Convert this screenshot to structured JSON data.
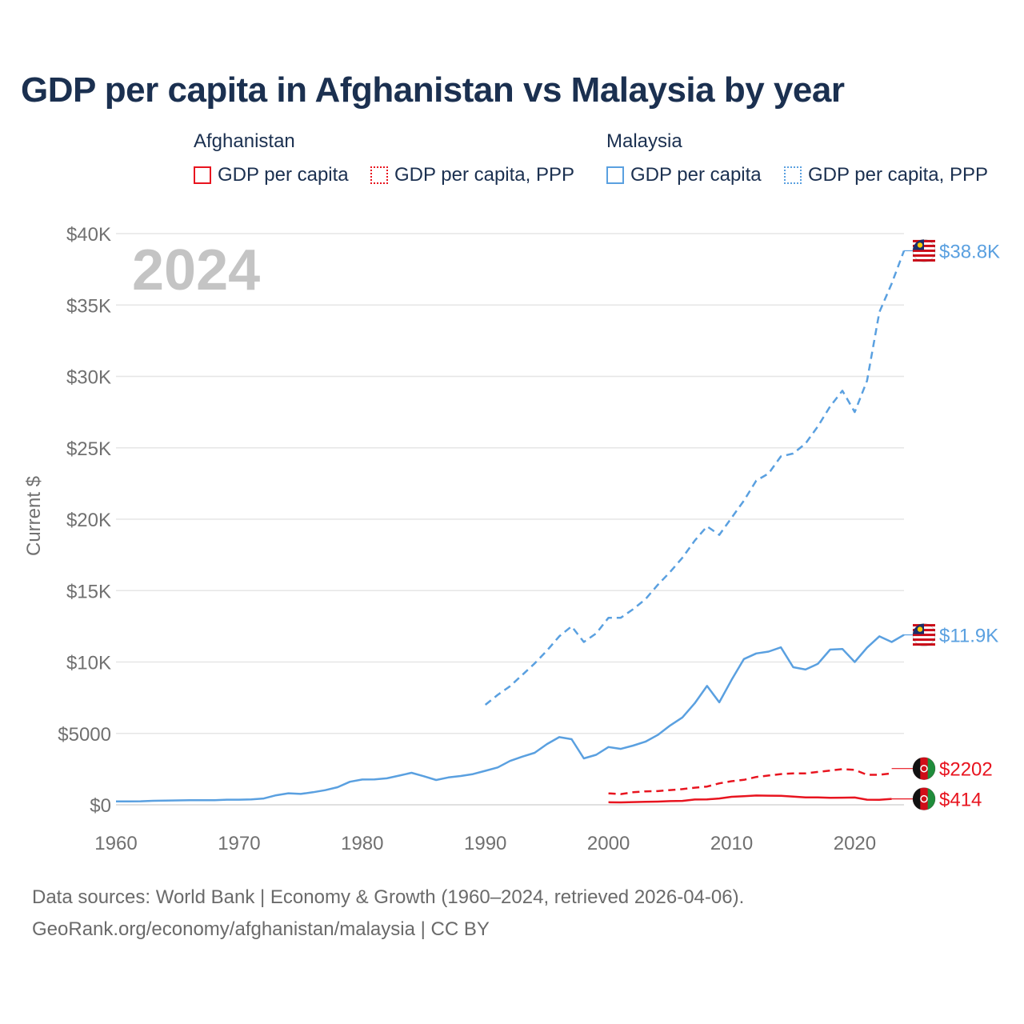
{
  "title": "GDP per capita in Afghanistan vs Malaysia by year",
  "legend": {
    "groups": [
      {
        "country": "Afghanistan",
        "color": "#e8141f",
        "items": [
          "GDP per capita",
          "GDP per capita, PPP"
        ]
      },
      {
        "country": "Malaysia",
        "color": "#5aa0e0",
        "items": [
          "GDP per capita",
          "GDP per capita, PPP"
        ]
      }
    ]
  },
  "chart_data": {
    "type": "line",
    "title": "GDP per capita in Afghanistan vs Malaysia by year",
    "ylabel": "Current $",
    "year_label": "2024",
    "xlim": [
      1960,
      2024
    ],
    "ylim": [
      0,
      40000
    ],
    "x_ticks": [
      "1960",
      "1970",
      "1980",
      "1990",
      "2000",
      "2010",
      "2020"
    ],
    "x_tick_values": [
      1960,
      1970,
      1980,
      1990,
      2000,
      2010,
      2020
    ],
    "y_ticks": [
      "$0",
      "$5000",
      "$10K",
      "$15K",
      "$20K",
      "$25K",
      "$30K",
      "$35K",
      "$40K"
    ],
    "y_tick_values": [
      0,
      5000,
      10000,
      15000,
      20000,
      25000,
      30000,
      35000,
      40000
    ],
    "series": [
      {
        "name": "Malaysia GDP per capita, PPP",
        "country": "Malaysia",
        "style": "dashed",
        "color": "#5aa0e0",
        "end_label": "$38.8K",
        "end_value": 38800,
        "x": [
          1990,
          1991,
          1992,
          1993,
          1994,
          1995,
          1996,
          1997,
          1998,
          1999,
          2000,
          2001,
          2002,
          2003,
          2004,
          2005,
          2006,
          2007,
          2008,
          2009,
          2010,
          2011,
          2012,
          2013,
          2014,
          2015,
          2016,
          2017,
          2018,
          2019,
          2020,
          2021,
          2022,
          2023,
          2024
        ],
        "values": [
          7000,
          7700,
          8300,
          9100,
          9900,
          10800,
          11800,
          12500,
          11400,
          12000,
          13100,
          13100,
          13700,
          14400,
          15400,
          16300,
          17300,
          18500,
          19500,
          18900,
          20100,
          21300,
          22700,
          23200,
          24400,
          24600,
          25300,
          26500,
          27900,
          29000,
          27500,
          29700,
          34500,
          36500,
          38800
        ]
      },
      {
        "name": "Malaysia GDP per capita",
        "country": "Malaysia",
        "style": "solid",
        "color": "#5aa0e0",
        "end_label": "$11.9K",
        "end_value": 11900,
        "x": [
          1960,
          1961,
          1962,
          1963,
          1964,
          1965,
          1966,
          1967,
          1968,
          1969,
          1970,
          1971,
          1972,
          1973,
          1974,
          1975,
          1976,
          1977,
          1978,
          1979,
          1980,
          1981,
          1982,
          1983,
          1984,
          1985,
          1986,
          1987,
          1988,
          1989,
          1990,
          1991,
          1992,
          1993,
          1994,
          1995,
          1996,
          1997,
          1998,
          1999,
          2000,
          2001,
          2002,
          2003,
          2004,
          2005,
          2006,
          2007,
          2008,
          2009,
          2010,
          2011,
          2012,
          2013,
          2014,
          2015,
          2016,
          2017,
          2018,
          2019,
          2020,
          2021,
          2022,
          2023,
          2024
        ],
        "values": [
          235,
          233,
          244,
          281,
          296,
          310,
          323,
          321,
          325,
          358,
          357,
          382,
          444,
          667,
          806,
          764,
          882,
          1025,
          1233,
          1614,
          1769,
          1780,
          1856,
          2047,
          2241,
          2000,
          1736,
          1918,
          2019,
          2154,
          2380,
          2617,
          3072,
          3372,
          3640,
          4250,
          4740,
          4594,
          3250,
          3500,
          4044,
          3914,
          4145,
          4420,
          4891,
          5553,
          6118,
          7110,
          8325,
          7175,
          8752,
          10209,
          10601,
          10728,
          11024,
          9634,
          9476,
          9869,
          10870,
          10914,
          10000,
          11000,
          11800,
          11400,
          11900
        ]
      },
      {
        "name": "Afghanistan GDP per capita, PPP",
        "country": "Afghanistan",
        "style": "dashed",
        "color": "#e8141f",
        "end_label": "$2202",
        "end_value": 2202,
        "x": [
          2000,
          2001,
          2002,
          2003,
          2004,
          2005,
          2006,
          2007,
          2008,
          2009,
          2010,
          2011,
          2012,
          2013,
          2014,
          2015,
          2016,
          2017,
          2018,
          2019,
          2020,
          2021,
          2022,
          2023
        ],
        "values": [
          800,
          750,
          880,
          940,
          960,
          1030,
          1100,
          1200,
          1280,
          1500,
          1650,
          1750,
          1950,
          2050,
          2150,
          2200,
          2200,
          2300,
          2400,
          2500,
          2450,
          2100,
          2100,
          2202
        ]
      },
      {
        "name": "Afghanistan GDP per capita",
        "country": "Afghanistan",
        "style": "solid",
        "color": "#e8141f",
        "end_label": "$414",
        "end_value": 414,
        "x": [
          2000,
          2001,
          2002,
          2003,
          2004,
          2005,
          2006,
          2007,
          2008,
          2009,
          2010,
          2011,
          2012,
          2013,
          2014,
          2015,
          2016,
          2017,
          2018,
          2019,
          2020,
          2021,
          2022,
          2023
        ],
        "values": [
          180,
          170,
          190,
          210,
          225,
          255,
          275,
          370,
          380,
          440,
          560,
          600,
          650,
          640,
          625,
          570,
          520,
          520,
          490,
          500,
          510,
          360,
          350,
          414
        ]
      }
    ]
  },
  "footer": {
    "line1": "Data sources: World Bank | Economy & Growth (1960–2024, retrieved 2026-04-06).",
    "line2": "GeoRank.org/economy/afghanistan/malaysia | CC BY"
  }
}
